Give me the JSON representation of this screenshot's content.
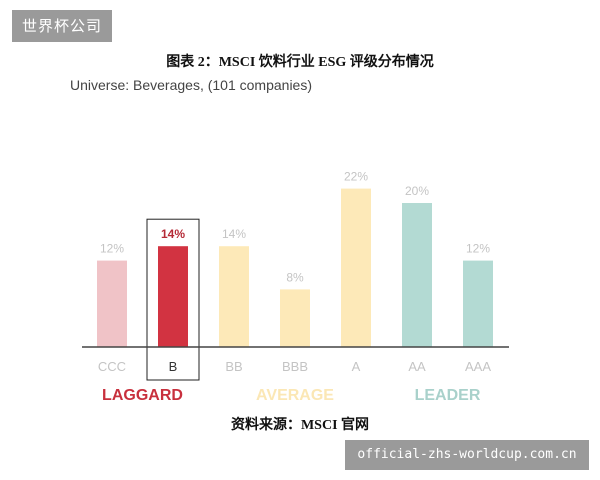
{
  "watermark_top": "世界杯公司",
  "watermark_bottom": "official-zhs-worldcup.com.cn",
  "source": "资料来源：MSCI 官网",
  "chart_data": {
    "type": "bar",
    "title": "图表 2：MSCI 饮料行业 ESG 评级分布情况",
    "subtitle": "Universe: Beverages, (101 companies)",
    "categories": [
      "CCC",
      "B",
      "BB",
      "BBB",
      "A",
      "AA",
      "AAA"
    ],
    "values": [
      12,
      14,
      14,
      8,
      22,
      20,
      12
    ],
    "value_labels": [
      "12%",
      "14%",
      "14%",
      "8%",
      "22%",
      "20%",
      "12%"
    ],
    "highlighted_category": "B",
    "ylim": [
      0,
      22
    ],
    "groups": [
      {
        "label": "LAGGARD",
        "categories": [
          "CCC",
          "B"
        ],
        "color": "#c8303d"
      },
      {
        "label": "AVERAGE",
        "categories": [
          "BB",
          "BBB",
          "A"
        ],
        "color": "#fbe7b5"
      },
      {
        "label": "LEADER",
        "categories": [
          "AA",
          "AAA"
        ],
        "color": "#a9d1cb"
      }
    ],
    "colors": {
      "CCC": "#f0c3c7",
      "B": "#d23341",
      "BB": "#fde9b8",
      "BBB": "#fde9b8",
      "A": "#fde9b8",
      "AA": "#b3dad3",
      "AAA": "#b3dad3",
      "axis": "#444444",
      "label_muted": "#c4c4c4",
      "label_highlight": "#b52a36"
    }
  }
}
